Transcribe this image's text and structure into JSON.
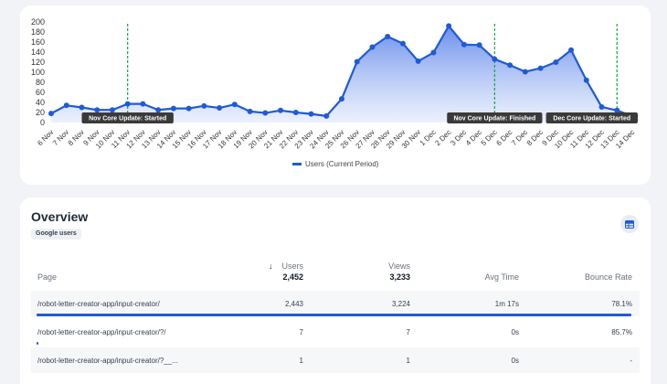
{
  "chart_data": {
    "type": "area",
    "ylim": [
      0,
      200
    ],
    "yticks": [
      0,
      20,
      40,
      60,
      80,
      100,
      120,
      140,
      160,
      180,
      200
    ],
    "categories": [
      "6 Nov",
      "7 Nov",
      "8 Nov",
      "9 Nov",
      "10 Nov",
      "11 Nov",
      "12 Nov",
      "13 Nov",
      "14 Nov",
      "15 Nov",
      "16 Nov",
      "17 Nov",
      "18 Nov",
      "19 Nov",
      "20 Nov",
      "21 Nov",
      "22 Nov",
      "23 Nov",
      "24 Nov",
      "25 Nov",
      "26 Nov",
      "27 Nov",
      "28 Nov",
      "29 Nov",
      "30 Nov",
      "1 Dec",
      "2 Dec",
      "3 Dec",
      "4 Dec",
      "5 Dec",
      "6 Dec",
      "7 Dec",
      "8 Dec",
      "9 Dec",
      "10 Dec",
      "11 Dec",
      "12 Dec",
      "13 Dec",
      "14 Dec"
    ],
    "series": [
      {
        "name": "Users (Current Period)",
        "color": "#1f5bd6",
        "values": [
          18,
          34,
          30,
          25,
          25,
          37,
          37,
          25,
          28,
          28,
          33,
          29,
          36,
          22,
          19,
          24,
          20,
          17,
          13,
          47,
          121,
          150,
          171,
          157,
          122,
          139,
          192,
          155,
          154,
          126,
          114,
          101,
          108,
          120,
          144,
          84,
          31,
          24,
          13
        ]
      }
    ],
    "annotations": [
      {
        "label": "Nov Core Update: Started",
        "at": "11 Nov"
      },
      {
        "label": "Nov Core Update: Finished",
        "at": "5 Dec"
      },
      {
        "label": "Dec Core Update: Started",
        "at": "13 Dec"
      }
    ],
    "legend_position": "bottom",
    "grid": false
  },
  "overview": {
    "title": "Overview",
    "badge": "Google users",
    "table_icon": "table-icon",
    "columns": {
      "page": "Page",
      "users": "Users",
      "users_sort_icon": "↓",
      "views": "Views",
      "avg_time": "Avg Time",
      "bounce_rate": "Bounce Rate"
    },
    "totals": {
      "users": "2,452",
      "views": "3,233"
    },
    "rows": [
      {
        "page": "/robot-letter-creator-app/input-creator/",
        "users": "2,443",
        "views": "3,224",
        "avg_time": "1m 17s",
        "bounce_rate": "78.1%",
        "share": 0.996
      },
      {
        "page": "/robot-letter-creator-app/input-creator/?/",
        "users": "7",
        "views": "7",
        "avg_time": "0s",
        "bounce_rate": "85.7%",
        "share": 0.003
      },
      {
        "page": "/robot-letter-creator-app/input-creator/?__...",
        "users": "1",
        "views": "1",
        "avg_time": "0s",
        "bounce_rate": "-",
        "share": 0.0004
      }
    ]
  }
}
